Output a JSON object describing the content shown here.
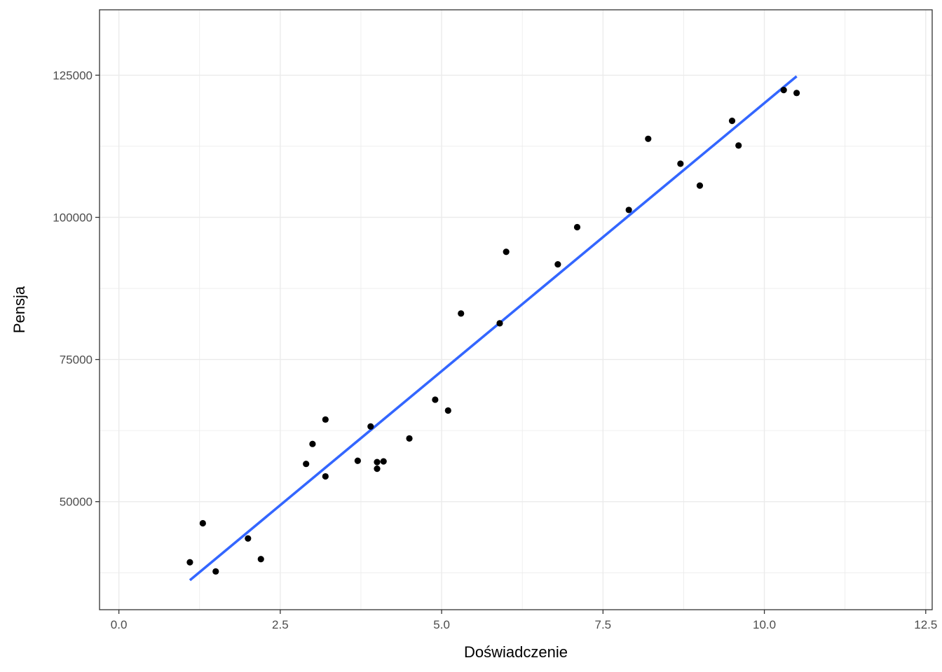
{
  "chart_data": {
    "type": "scatter",
    "title": "",
    "xlabel": "Doświadczenie",
    "ylabel": "Pensja",
    "xlim": [
      -0.3,
      12.6
    ],
    "ylim": [
      31000,
      136500
    ],
    "x_ticks": [
      0.0,
      2.5,
      5.0,
      7.5,
      10.0,
      12.5
    ],
    "x_tick_labels": [
      "0.0",
      "2.5",
      "5.0",
      "7.5",
      "10.0",
      "12.5"
    ],
    "y_ticks": [
      50000,
      75000,
      100000,
      125000
    ],
    "y_tick_labels": [
      "50000",
      "75000",
      "100000",
      "125000"
    ],
    "grid": true,
    "points": [
      {
        "x": 1.1,
        "y": 39343
      },
      {
        "x": 1.3,
        "y": 46205
      },
      {
        "x": 1.5,
        "y": 37731
      },
      {
        "x": 2.0,
        "y": 43525
      },
      {
        "x": 2.2,
        "y": 39891
      },
      {
        "x": 2.9,
        "y": 56642
      },
      {
        "x": 3.0,
        "y": 60150
      },
      {
        "x": 3.2,
        "y": 54445
      },
      {
        "x": 3.2,
        "y": 64445
      },
      {
        "x": 3.7,
        "y": 57189
      },
      {
        "x": 3.9,
        "y": 63218
      },
      {
        "x": 4.0,
        "y": 55794
      },
      {
        "x": 4.0,
        "y": 56957
      },
      {
        "x": 4.1,
        "y": 57081
      },
      {
        "x": 4.5,
        "y": 61111
      },
      {
        "x": 4.9,
        "y": 67938
      },
      {
        "x": 5.1,
        "y": 66029
      },
      {
        "x": 5.3,
        "y": 83088
      },
      {
        "x": 5.9,
        "y": 81363
      },
      {
        "x": 6.0,
        "y": 93940
      },
      {
        "x": 6.8,
        "y": 91738
      },
      {
        "x": 7.1,
        "y": 98273
      },
      {
        "x": 7.9,
        "y": 101302
      },
      {
        "x": 8.2,
        "y": 113812
      },
      {
        "x": 8.7,
        "y": 109431
      },
      {
        "x": 9.0,
        "y": 105582
      },
      {
        "x": 9.5,
        "y": 116969
      },
      {
        "x": 9.6,
        "y": 112635
      },
      {
        "x": 10.3,
        "y": 122391
      },
      {
        "x": 10.5,
        "y": 121872
      }
    ],
    "fit_line": {
      "x": [
        1.1,
        10.5
      ],
      "y": [
        36187,
        124806
      ]
    },
    "colors": {
      "points": "#000000",
      "fit_line": "#3366FF",
      "grid": "#ebebeb",
      "panel_border": "#333333"
    }
  }
}
